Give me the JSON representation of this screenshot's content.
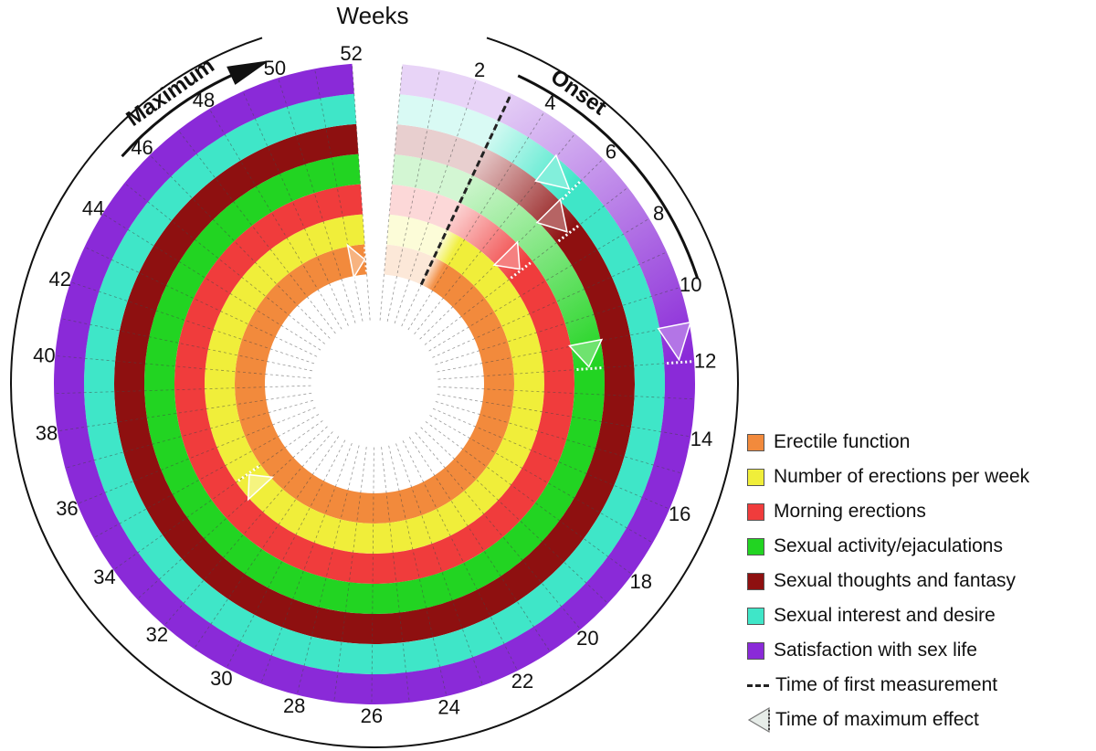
{
  "chart_data": {
    "type": "radial-timeline",
    "title": "Weeks",
    "axis_ticks": [
      2,
      4,
      6,
      8,
      10,
      12,
      14,
      16,
      18,
      20,
      22,
      24,
      26,
      28,
      30,
      32,
      34,
      36,
      38,
      40,
      42,
      44,
      46,
      48,
      50,
      52
    ],
    "week_range": [
      0,
      52
    ],
    "onset_label": "Onset",
    "maximum_label": "Maximum",
    "series": [
      {
        "name": "Erectile function",
        "color": "#f28a3c",
        "first_measurement_week": 3,
        "onset_end_week": 3,
        "max_effect_week": 52
      },
      {
        "name": "Number of erections per week",
        "color": "#f0ee3a",
        "first_measurement_week": 3,
        "onset_end_week": 3,
        "max_effect_week": 34
      },
      {
        "name": "Morning erections",
        "color": "#f03c3c",
        "first_measurement_week": 3,
        "onset_end_week": 7,
        "max_effect_week": 7
      },
      {
        "name": "Sexual activity/ejaculations",
        "color": "#22d422",
        "first_measurement_week": 3,
        "onset_end_week": 12,
        "max_effect_week": 12
      },
      {
        "name": "Sexual thoughts and fantasy",
        "color": "#8e1010",
        "first_measurement_week": 3,
        "onset_end_week": 7,
        "max_effect_week": 7
      },
      {
        "name": "Sexual interest and desire",
        "color": "#3fe6c8",
        "first_measurement_week": 3,
        "onset_end_week": 6,
        "max_effect_week": 6
      },
      {
        "name": "Satisfaction with sex life",
        "color": "#8a2ad8",
        "first_measurement_week": 3,
        "onset_end_week": 12,
        "max_effect_week": 12
      }
    ],
    "legend": {
      "first_measurement": "Time of first measurement",
      "max_effect": "Time of maximum effect",
      "placement": "bottom-right"
    }
  }
}
